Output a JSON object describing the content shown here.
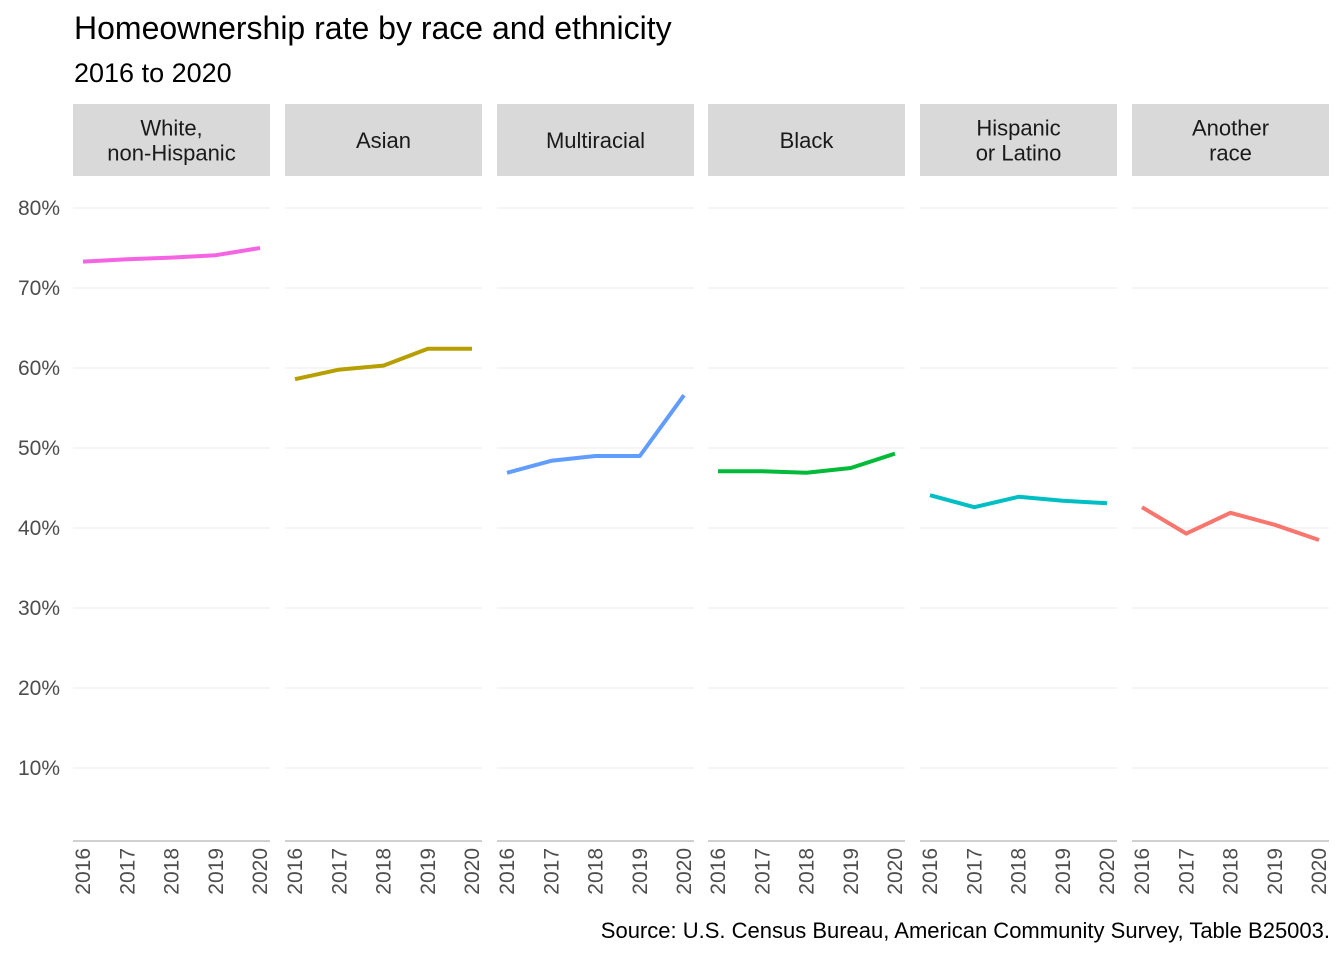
{
  "title": "Homeownership rate by race and ethnicity",
  "subtitle": "2016 to 2020",
  "caption": "Source: U.S. Census Bureau, American Community Survey, Table B25003.",
  "chart_data": {
    "type": "line",
    "facets": true,
    "x": [
      "2016",
      "2017",
      "2018",
      "2019",
      "2020"
    ],
    "ylim": [
      1,
      84
    ],
    "y_ticks": [
      {
        "value": 10,
        "label": "10%"
      },
      {
        "value": 20,
        "label": "20%"
      },
      {
        "value": 30,
        "label": "30%"
      },
      {
        "value": 40,
        "label": "40%"
      },
      {
        "value": 50,
        "label": "50%"
      },
      {
        "value": 60,
        "label": "60%"
      },
      {
        "value": 70,
        "label": "70%"
      },
      {
        "value": 80,
        "label": "80%"
      }
    ],
    "grid": true,
    "legend": "none",
    "panels": [
      {
        "name": "White, non-Hispanic",
        "label_lines": [
          "White,",
          "non-Hispanic"
        ],
        "color": "#F564E3",
        "values": [
          73.3,
          73.6,
          73.8,
          74.1,
          75.0
        ]
      },
      {
        "name": "Asian",
        "label_lines": [
          "Asian"
        ],
        "color": "#B79F00",
        "values": [
          58.6,
          59.8,
          60.3,
          62.4,
          62.4
        ]
      },
      {
        "name": "Multiracial",
        "label_lines": [
          "Multiracial"
        ],
        "color": "#619CFF",
        "values": [
          46.9,
          48.4,
          49.0,
          49.0,
          56.6
        ]
      },
      {
        "name": "Black",
        "label_lines": [
          "Black"
        ],
        "color": "#00BA38",
        "values": [
          47.1,
          47.1,
          46.9,
          47.5,
          49.3
        ]
      },
      {
        "name": "Hispanic or Latino",
        "label_lines": [
          "Hispanic",
          "or Latino"
        ],
        "color": "#00BFC4",
        "values": [
          44.1,
          42.6,
          43.9,
          43.4,
          43.1
        ]
      },
      {
        "name": "Another race",
        "label_lines": [
          "Another",
          "race"
        ],
        "color": "#F8766D",
        "values": [
          42.6,
          39.3,
          41.9,
          40.4,
          38.5
        ]
      }
    ]
  }
}
